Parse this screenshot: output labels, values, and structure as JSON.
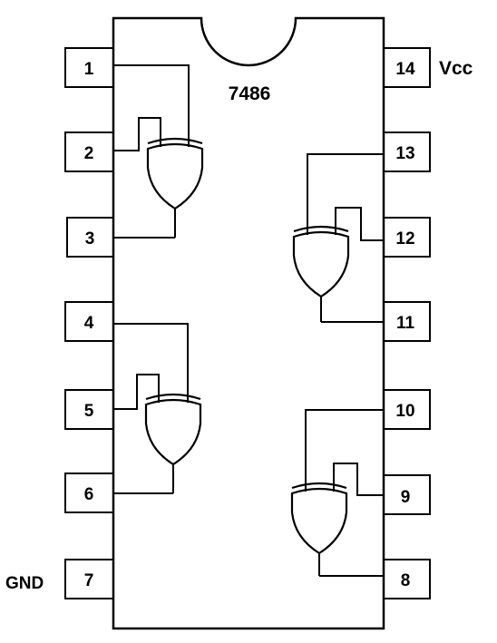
{
  "chip": {
    "part_number": "7486"
  },
  "power_labels": {
    "vcc": "Vcc",
    "gnd": "GND"
  },
  "pins": {
    "p1": "1",
    "p2": "2",
    "p3": "3",
    "p4": "4",
    "p5": "5",
    "p6": "6",
    "p7": "7",
    "p8": "8",
    "p9": "9",
    "p10": "10",
    "p11": "11",
    "p12": "12",
    "p13": "13",
    "p14": "14"
  },
  "gates": [
    {
      "type": "XOR",
      "inputs": [
        "1",
        "2"
      ],
      "output": "3"
    },
    {
      "type": "XOR",
      "inputs": [
        "4",
        "5"
      ],
      "output": "6"
    },
    {
      "type": "XOR",
      "inputs": [
        "13",
        "12"
      ],
      "output": "11"
    },
    {
      "type": "XOR",
      "inputs": [
        "10",
        "9"
      ],
      "output": "8"
    }
  ]
}
